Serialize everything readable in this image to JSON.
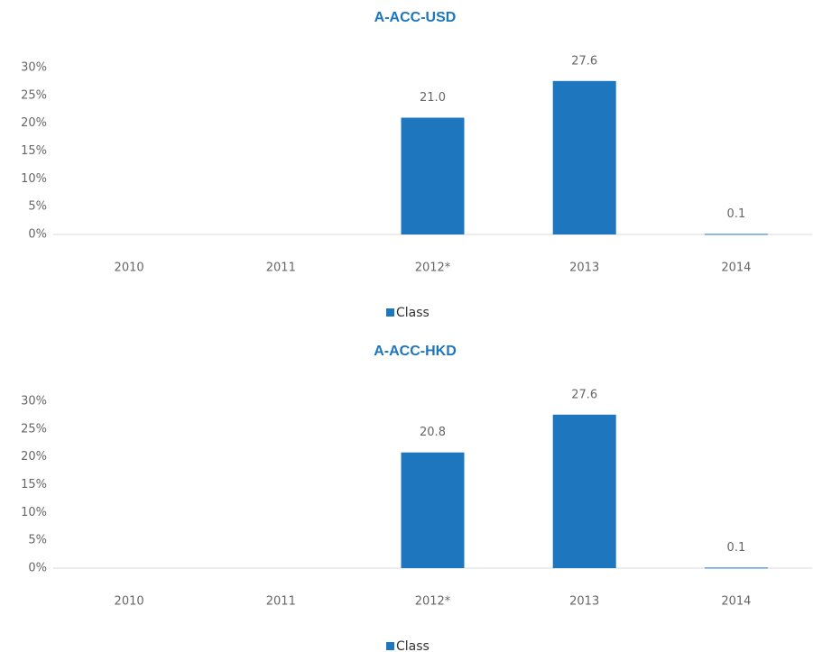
{
  "chart_data": [
    {
      "type": "bar",
      "title": "A-ACC-USD",
      "categories": [
        "2010",
        "2011",
        "2012*",
        "2013",
        "2014"
      ],
      "series": [
        {
          "name": "Class",
          "color": "#1e76bf",
          "values": [
            null,
            null,
            21.0,
            27.6,
            0.1
          ],
          "value_labels": [
            null,
            null,
            "21.0",
            "27.6",
            "0.1"
          ]
        }
      ],
      "ylim": [
        0,
        30
      ],
      "yticks": [
        {
          "value": 0,
          "label": "0%"
        },
        {
          "value": 5,
          "label": "5%"
        },
        {
          "value": 10,
          "label": "10%"
        },
        {
          "value": 15,
          "label": "15%"
        },
        {
          "value": 20,
          "label": "20%"
        },
        {
          "value": 25,
          "label": "25%"
        },
        {
          "value": 30,
          "label": "30%"
        }
      ],
      "grid": false,
      "legend": "bottom"
    },
    {
      "type": "bar",
      "title": "A-ACC-HKD",
      "categories": [
        "2010",
        "2011",
        "2012*",
        "2013",
        "2014"
      ],
      "series": [
        {
          "name": "Class",
          "color": "#1e76bf",
          "values": [
            null,
            null,
            20.8,
            27.6,
            0.1
          ]
        }
      ],
      "ylim": [
        0,
        30
      ],
      "yticks": [
        {
          "value": 0,
          "label": "0%"
        },
        {
          "value": 5,
          "label": "5%"
        },
        {
          "value": 10,
          "label": "10%"
        },
        {
          "value": 15,
          "label": "15%"
        },
        {
          "value": 20,
          "label": "20%"
        },
        {
          "value": 25,
          "label": "25%"
        },
        {
          "value": 30,
          "label": "30%"
        }
      ],
      "grid": false,
      "legend": "bottom"
    }
  ]
}
